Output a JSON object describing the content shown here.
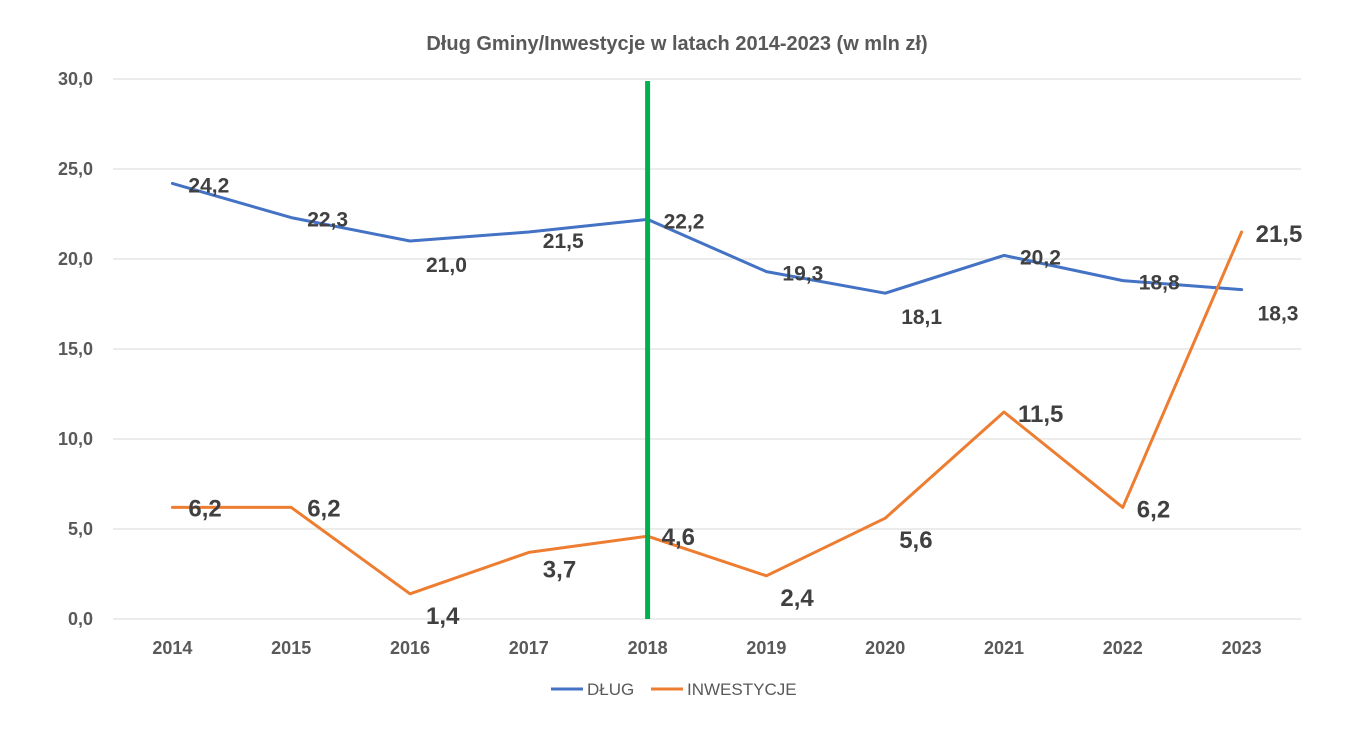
{
  "chart_data": {
    "type": "line",
    "title": "Dług Gminy/Inwestycje w latach 2014-2023 (w mln zł)",
    "xlabel": "",
    "ylabel": "",
    "categories": [
      "2014",
      "2015",
      "2016",
      "2017",
      "2018",
      "2019",
      "2020",
      "2021",
      "2022",
      "2023"
    ],
    "ylim": [
      0,
      30
    ],
    "yticks": [
      "0,0",
      "5,0",
      "10,0",
      "15,0",
      "20,0",
      "25,0",
      "30,0"
    ],
    "grid": true,
    "legend_position": "bottom",
    "series": [
      {
        "name": "DŁUG",
        "color": "#4472c4",
        "values": [
          24.2,
          22.3,
          21.0,
          21.5,
          22.2,
          19.3,
          18.1,
          20.2,
          18.8,
          18.3
        ],
        "labels": [
          "24,2",
          "22,3",
          "21,0",
          "21,5",
          "22,2",
          "19,3",
          "18,1",
          "20,2",
          "18,8",
          "18,3"
        ]
      },
      {
        "name": "INWESTYCJE",
        "color": "#ed7d31",
        "values": [
          6.2,
          6.2,
          1.4,
          3.7,
          4.6,
          2.4,
          5.6,
          11.5,
          6.2,
          21.5
        ],
        "labels": [
          "6,2",
          "6,2",
          "1,4",
          "3,7",
          "4,6",
          "2,4",
          "5,6",
          "11,5",
          "6,2",
          "21,5"
        ]
      }
    ],
    "marker_line": {
      "category": "2018",
      "color": "#00b050"
    },
    "gridline_color": "#d9d9d9"
  }
}
